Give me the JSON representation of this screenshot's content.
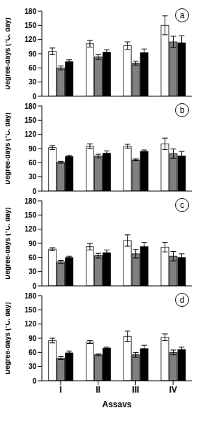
{
  "chart_data": [
    {
      "type": "bar",
      "title": "a",
      "y_label": "Degree-days (°C. day)",
      "categories": [
        "I",
        "II",
        "III",
        "IV"
      ],
      "ylim": [
        0,
        180
      ],
      "yticks": [
        0,
        30,
        60,
        90,
        120,
        150,
        180
      ],
      "tick_labels": "y",
      "series": [
        {
          "color": "#ffffff",
          "values": [
            95,
            111,
            107,
            150
          ],
          "errors": [
            7,
            7,
            8,
            20
          ]
        },
        {
          "color": "#808080",
          "values": [
            60,
            83,
            70,
            115
          ],
          "errors": [
            4,
            5,
            4,
            12
          ]
        },
        {
          "color": "#000000",
          "values": [
            73,
            93,
            92,
            113
          ],
          "errors": [
            4,
            5,
            8,
            15
          ]
        }
      ]
    },
    {
      "type": "bar",
      "title": "b",
      "y_label": "Degree-days (°C. day)",
      "categories": [
        "I",
        "II",
        "III",
        "IV"
      ],
      "ylim": [
        0,
        180
      ],
      "yticks": [
        0,
        30,
        60,
        90,
        120,
        150,
        180
      ],
      "tick_labels": "y",
      "series": [
        {
          "color": "#ffffff",
          "values": [
            92,
            95,
            95,
            100
          ],
          "errors": [
            4,
            5,
            4,
            12
          ]
        },
        {
          "color": "#808080",
          "values": [
            61,
            74,
            66,
            79
          ],
          "errors": [
            2,
            4,
            2,
            10
          ]
        },
        {
          "color": "#000000",
          "values": [
            73,
            80,
            84,
            74
          ],
          "errors": [
            3,
            5,
            3,
            10
          ]
        }
      ]
    },
    {
      "type": "bar",
      "title": "c",
      "y_label": "Degree-days (°C. day)",
      "categories": [
        "I",
        "II",
        "III",
        "IV"
      ],
      "ylim": [
        0,
        180
      ],
      "yticks": [
        0,
        30,
        60,
        90,
        120,
        150,
        180
      ],
      "tick_labels": "y",
      "series": [
        {
          "color": "#ffffff",
          "values": [
            78,
            83,
            96,
            82
          ],
          "errors": [
            3,
            7,
            12,
            10
          ]
        },
        {
          "color": "#808080",
          "values": [
            51,
            64,
            68,
            63
          ],
          "errors": [
            3,
            5,
            9,
            10
          ]
        },
        {
          "color": "#000000",
          "values": [
            60,
            70,
            83,
            60
          ],
          "errors": [
            3,
            6,
            9,
            8
          ]
        }
      ]
    },
    {
      "type": "bar",
      "title": "d",
      "y_label": "Degree-days (°C. day)",
      "x_label": "Assays",
      "categories": [
        "I",
        "II",
        "III",
        "IV"
      ],
      "ylim": [
        0,
        180
      ],
      "yticks": [
        0,
        30,
        60,
        90,
        120,
        150,
        180
      ],
      "series": [
        {
          "color": "#ffffff",
          "values": [
            85,
            82,
            94,
            92
          ],
          "errors": [
            5,
            3,
            11,
            7
          ]
        },
        {
          "color": "#808080",
          "values": [
            48,
            55,
            55,
            60
          ],
          "errors": [
            3,
            2,
            5,
            5
          ]
        },
        {
          "color": "#000000",
          "values": [
            59,
            69,
            68,
            66
          ],
          "errors": [
            4,
            2,
            7,
            5
          ]
        }
      ]
    }
  ]
}
